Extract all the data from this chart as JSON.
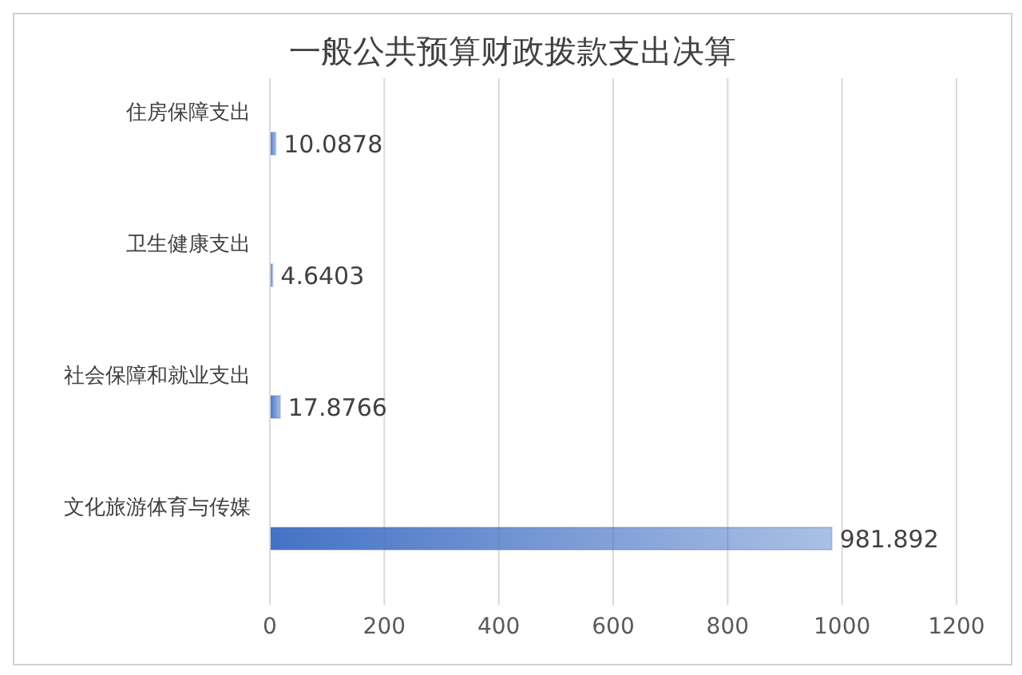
{
  "chart_data": {
    "type": "bar",
    "orientation": "horizontal",
    "title": "一般公共预算财政拨款支出决算",
    "categories": [
      "住房保障支出",
      "卫生健康支出",
      "社会保障和就业支出",
      "文化旅游体育与传媒"
    ],
    "values": [
      10.0878,
      4.6403,
      17.8766,
      981.892
    ],
    "color": "#4472c4",
    "xlim": [
      0,
      1200
    ],
    "xticks": [
      0,
      200,
      400,
      600,
      800,
      1000,
      1200
    ],
    "grid": "x",
    "data_labels": true,
    "legend": false
  }
}
